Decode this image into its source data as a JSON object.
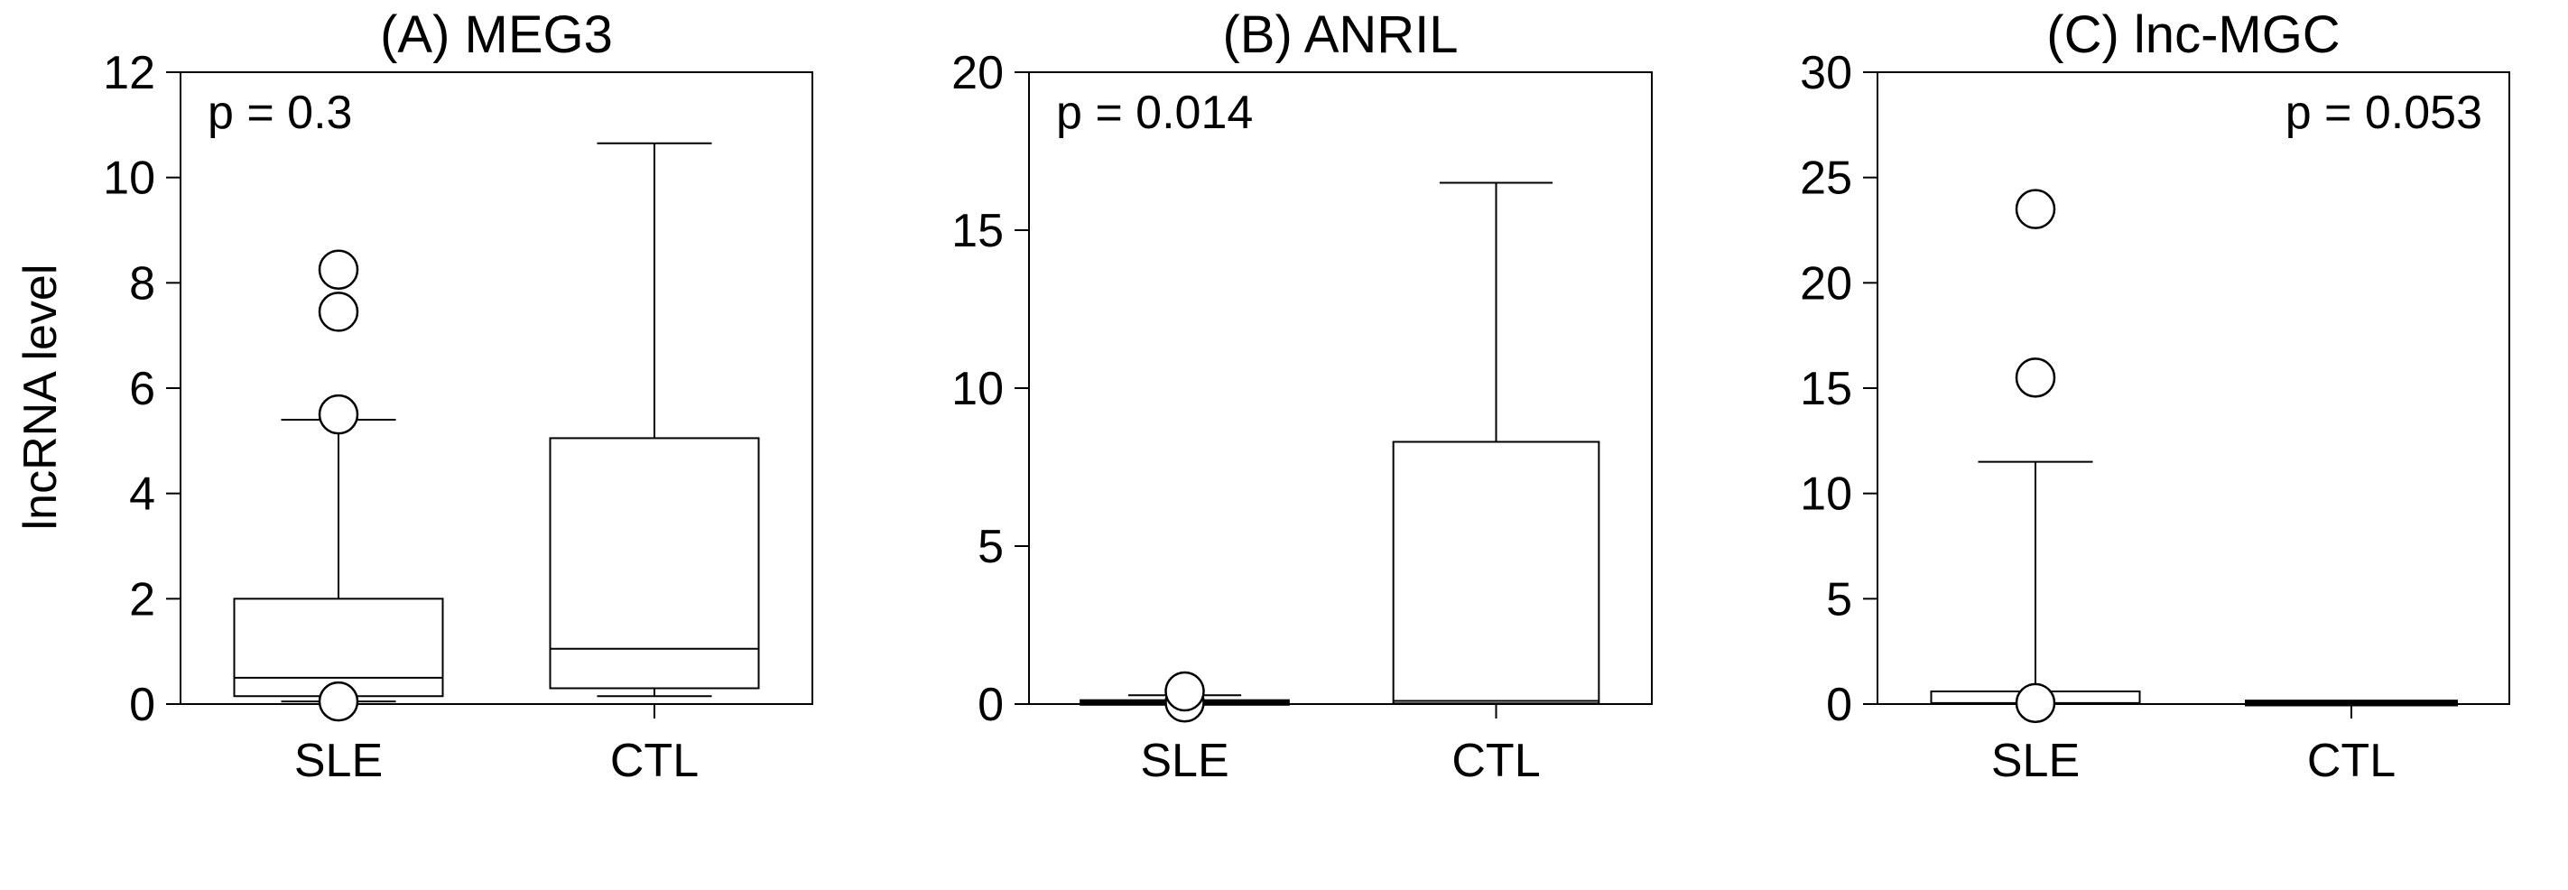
{
  "figure": {
    "ylabel": "lncRNA level"
  },
  "chart_data": [
    {
      "type": "box",
      "title": "(A) MEG3",
      "ylabel": "lncRNA level",
      "annotation": "p = 0.3",
      "annotation_position": "top-left",
      "categories": [
        "SLE",
        "CTL"
      ],
      "ylim": [
        0,
        12
      ],
      "yticks": [
        0,
        2,
        4,
        6,
        8,
        10,
        12
      ],
      "boxes": [
        {
          "category": "SLE",
          "whisker_low": 0.05,
          "q1": 0.15,
          "median": 0.5,
          "q3": 2.0,
          "whisker_high": 5.4,
          "outliers": [
            0.05,
            5.5,
            7.45,
            8.25
          ]
        },
        {
          "category": "CTL",
          "whisker_low": 0.15,
          "q1": 0.3,
          "median": 1.05,
          "q3": 5.05,
          "whisker_high": 10.65,
          "outliers": []
        }
      ]
    },
    {
      "type": "box",
      "title": "(B) ANRIL",
      "annotation": "p = 0.014",
      "annotation_position": "top-left",
      "categories": [
        "SLE",
        "CTL"
      ],
      "ylim": [
        0,
        20
      ],
      "yticks": [
        0,
        5,
        10,
        15,
        20
      ],
      "boxes": [
        {
          "category": "SLE",
          "whisker_low": 0.0,
          "q1": 0.02,
          "median": 0.04,
          "q3": 0.08,
          "whisker_high": 0.28,
          "outliers": [
            0.05,
            0.4
          ]
        },
        {
          "category": "CTL",
          "whisker_low": 0.0,
          "q1": 0.02,
          "median": 0.1,
          "q3": 8.3,
          "whisker_high": 16.5,
          "outliers": []
        }
      ]
    },
    {
      "type": "box",
      "title": "(C) lnc-MGC",
      "annotation": "p = 0.053",
      "annotation_position": "top-right",
      "categories": [
        "SLE",
        "CTL"
      ],
      "ylim": [
        0,
        30
      ],
      "yticks": [
        0,
        5,
        10,
        15,
        20,
        25,
        30
      ],
      "boxes": [
        {
          "category": "SLE",
          "whisker_low": 0.0,
          "q1": 0.0,
          "median": 0.05,
          "q3": 0.6,
          "whisker_high": 11.5,
          "outliers": [
            0.05,
            15.5,
            23.5
          ]
        },
        {
          "category": "CTL",
          "whisker_low": 0.0,
          "q1": 0.0,
          "median": 0.05,
          "q3": 0.1,
          "whisker_high": 0.1,
          "outliers": []
        }
      ]
    }
  ]
}
